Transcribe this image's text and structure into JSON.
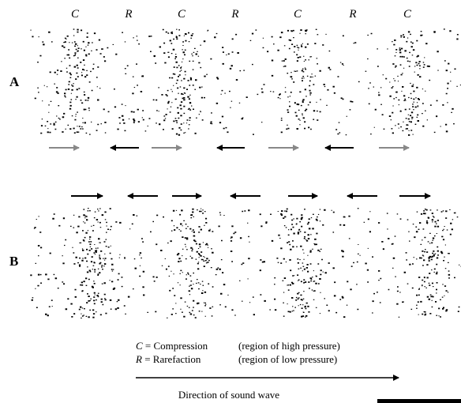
{
  "top_labels": [
    "C",
    "R",
    "C",
    "R",
    "C",
    "R",
    "C"
  ],
  "rows": [
    "A",
    "B"
  ],
  "legend": [
    {
      "symbol": "C",
      "term": "= Compression",
      "description": "(region of high pressure)"
    },
    {
      "symbol": "R",
      "term": "= Rarefaction",
      "description": "(region of low pressure)"
    }
  ],
  "direction_label": "Direction of sound wave"
}
